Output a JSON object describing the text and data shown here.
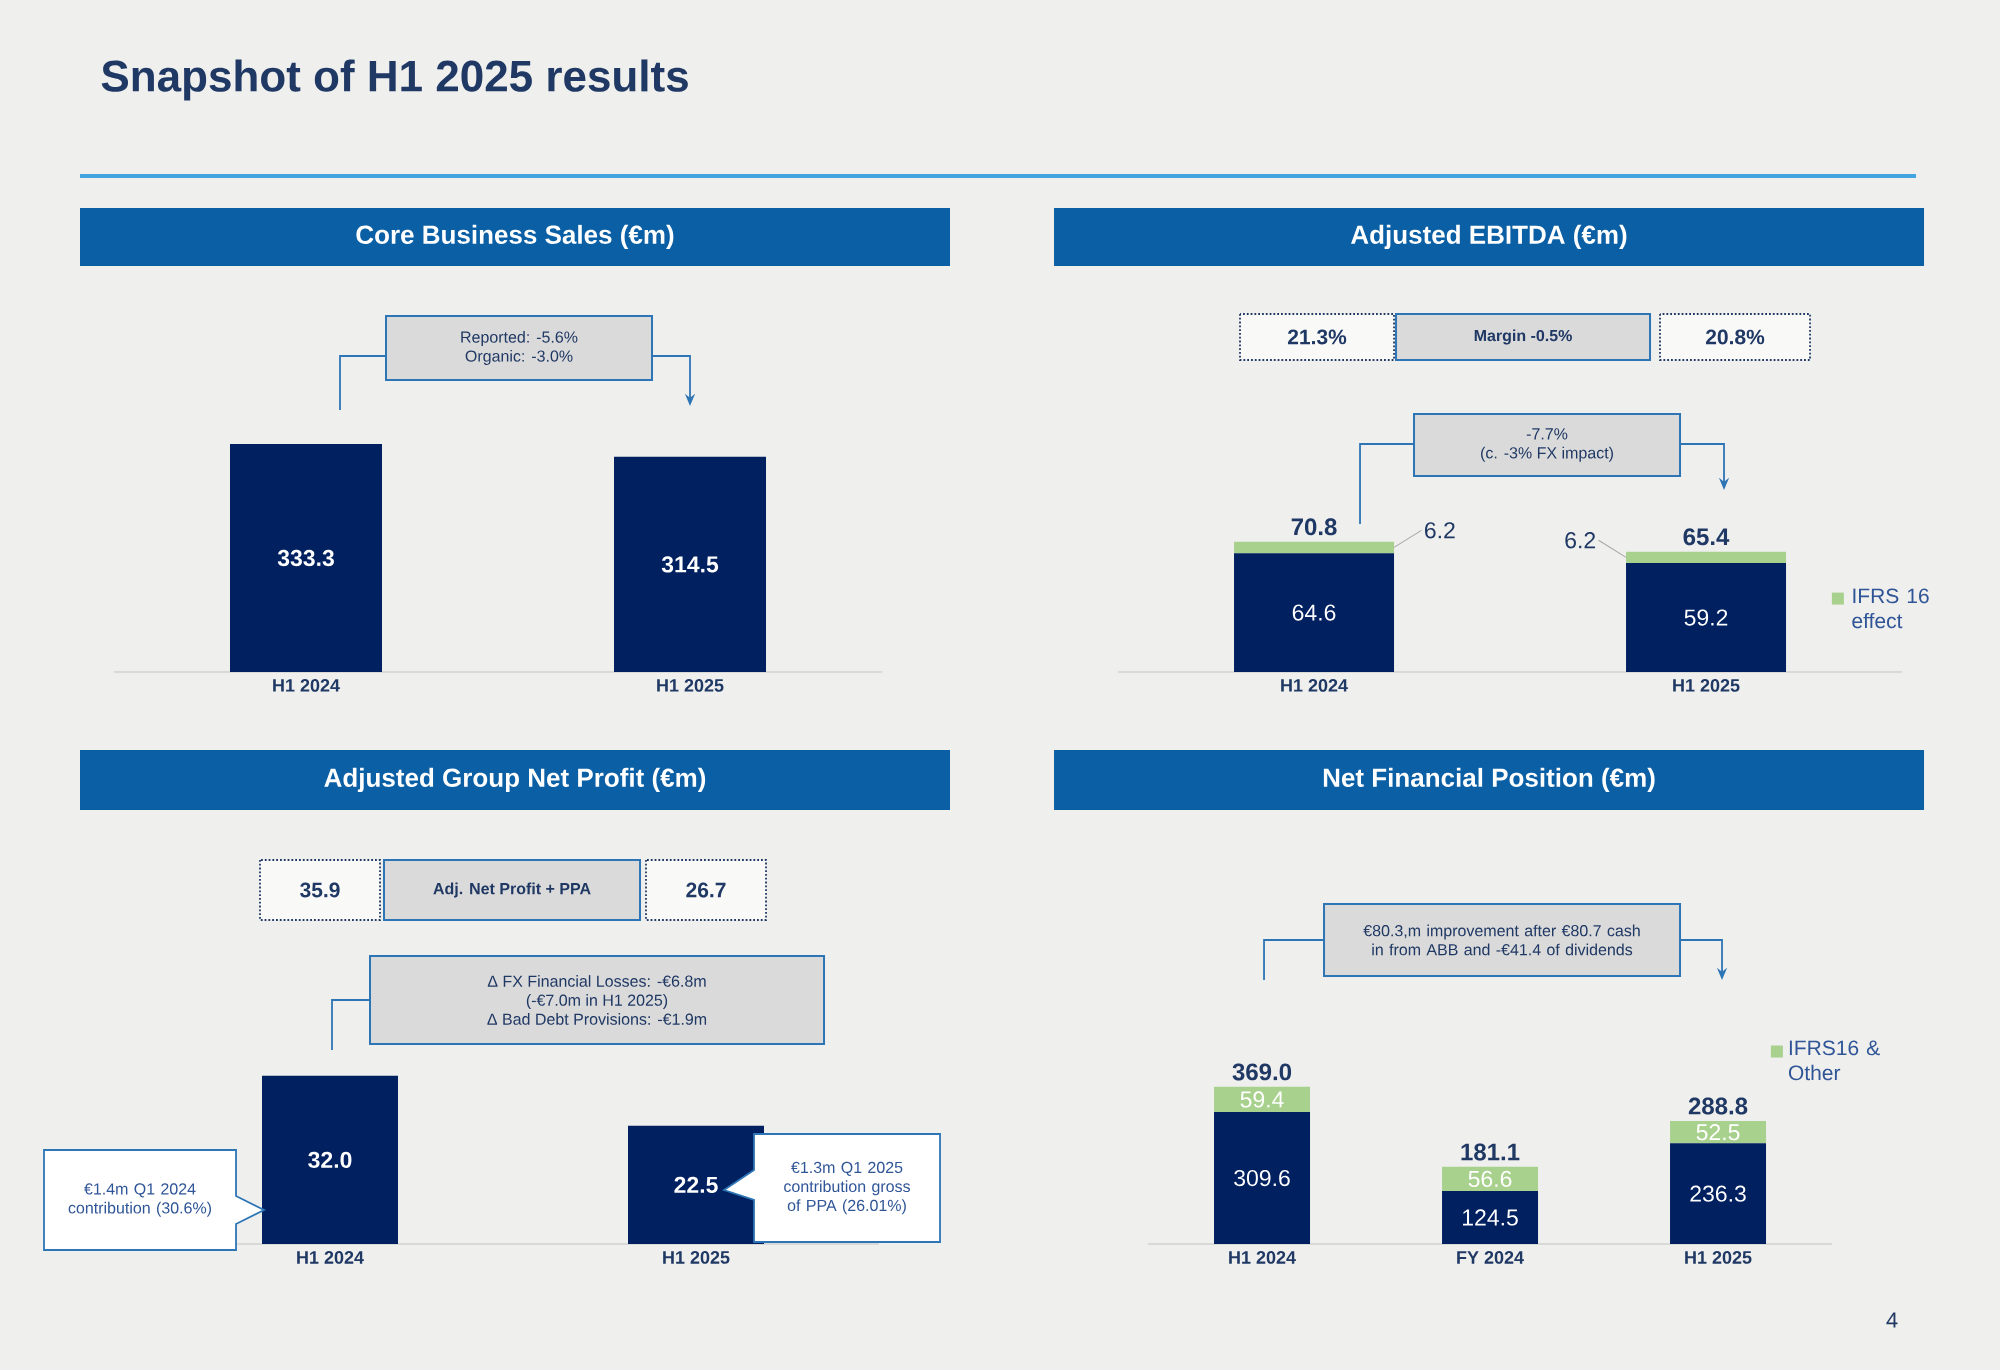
{
  "chart_data": [
    {
      "type": "bar",
      "title": "Core Business Sales (€m)",
      "categories": [
        "H1 2024",
        "H1 2025"
      ],
      "data_labels": true,
      "series": [
        {
          "color": "#002060",
          "values": [
            333.3,
            314.5
          ]
        }
      ],
      "annotations": [
        "Snapshot of H1 2025 results",
        "4",
        "Reported: -5.6%",
        "Organic: -3.0%"
      ]
    },
    {
      "type": "bar",
      "title": "Adjusted EBITDA (€m)",
      "categories": [
        "H1 2024",
        "H1 2025"
      ],
      "data_labels": true,
      "stacked": true,
      "legend": "right",
      "series": [
        {
          "color": "#002060",
          "values": [
            64.6,
            59.2
          ]
        },
        {
          "name": "IFRS 16 effect",
          "color": "#a9d18e",
          "values": [
            6.2,
            6.2
          ]
        }
      ],
      "totals": [
        "70.8",
        "65.4"
      ],
      "annotations": [
        "21.3%",
        "Margin -0.5%",
        "20.8%",
        "-7.7%",
        "(c. -3% FX impact)"
      ]
    },
    {
      "type": "bar",
      "title": "Adjusted Group Net Profit (€m)",
      "categories": [
        "H1 2024",
        "H1 2025"
      ],
      "series": [
        {
          "color": "#002060",
          "values": [
            32.0,
            22.5
          ],
          "value_labels": [
            "32.0",
            "22.5"
          ]
        }
      ],
      "annotations": [
        "35.9",
        "Adj. Net Profit + PPA",
        "26.7",
        "Δ FX Financial Losses: -€6.8m",
        "(-€7.0m in H1 2025)",
        "Δ Bad Debt Provisions: -€1.9m",
        "€1.4m Q1 2024 contribution (30.6%)",
        "€1.3m Q1 2025 contribution gross of PPA (26.01%)"
      ]
    },
    {
      "type": "bar",
      "title": "Net Financial Position (€m)",
      "categories": [
        "H1 2024",
        "FY 2024",
        "H1 2025"
      ],
      "data_labels": true,
      "stacked": true,
      "legend": "top right",
      "series": [
        {
          "color": "#002060",
          "values": [
            309.6,
            124.5,
            236.3
          ]
        },
        {
          "name": "IFRS16 & Other",
          "color": "#a9d18e",
          "values": [
            59.4,
            56.6,
            52.5
          ]
        }
      ],
      "totals": [
        "369.0",
        "181.1",
        "288.8"
      ],
      "annotations": [
        "€80.3,m improvement after €80.7 cash in from ABB and -€41.4 of dividends"
      ]
    }
  ]
}
